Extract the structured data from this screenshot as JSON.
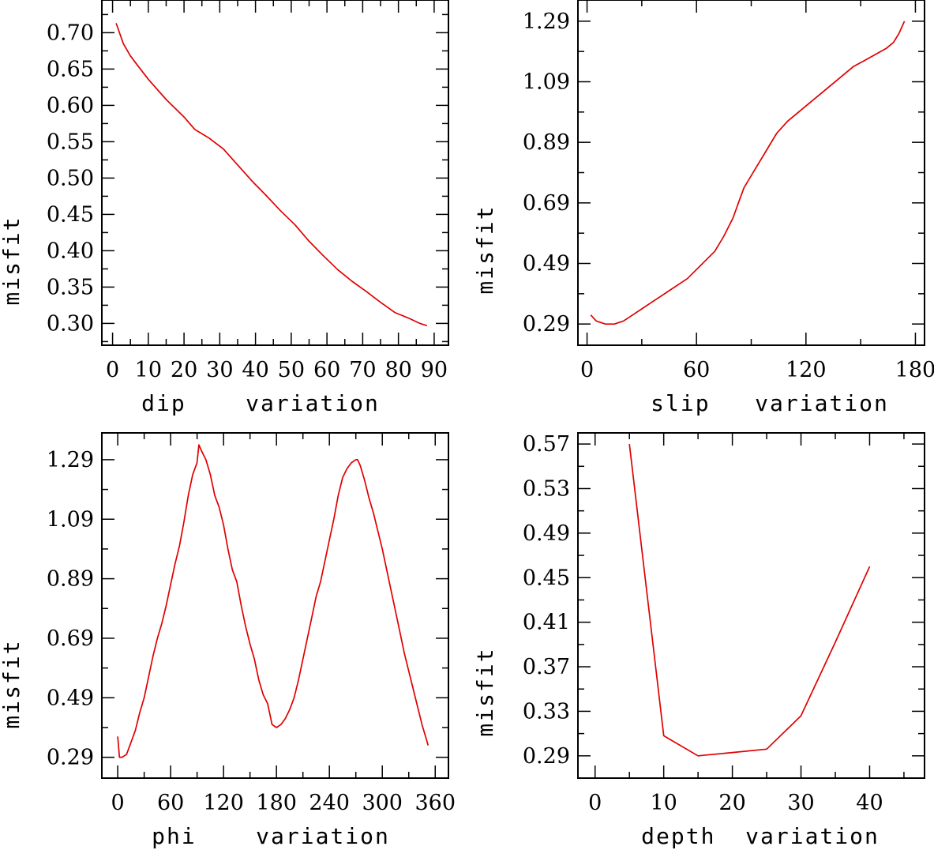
{
  "colors": {
    "curve": "#e00000",
    "frame": "#000000"
  },
  "chart_data": [
    {
      "type": "line",
      "title": "",
      "xlabel": "dip    variation",
      "ylabel": "misfit",
      "xlim": [
        -3,
        94
      ],
      "ylim": [
        0.27,
        0.745
      ],
      "xticks": [
        "0",
        "10",
        "20",
        "30",
        "40",
        "50",
        "60",
        "70",
        "80",
        "90"
      ],
      "xtick_values": [
        0,
        10,
        20,
        30,
        40,
        50,
        60,
        70,
        80,
        90
      ],
      "yticks": [
        "0.70",
        "0.65",
        "0.60",
        "0.55",
        "0.50",
        "0.45",
        "0.40",
        "0.35",
        "0.30"
      ],
      "ytick_values": [
        0.7,
        0.65,
        0.6,
        0.55,
        0.5,
        0.45,
        0.4,
        0.35,
        0.3
      ],
      "series": [
        {
          "name": "misfit",
          "x": [
            1,
            3,
            5,
            7,
            10,
            15,
            20,
            23,
            27,
            31,
            35,
            39,
            43,
            47,
            51,
            55,
            59,
            63,
            67,
            71,
            75,
            79,
            83,
            86,
            88
          ],
          "y": [
            0.713,
            0.685,
            0.668,
            0.655,
            0.636,
            0.608,
            0.584,
            0.567,
            0.555,
            0.54,
            0.518,
            0.496,
            0.476,
            0.455,
            0.436,
            0.413,
            0.393,
            0.374,
            0.358,
            0.344,
            0.329,
            0.315,
            0.307,
            0.3,
            0.297
          ]
        }
      ]
    },
    {
      "type": "line",
      "title": "",
      "xlabel": "slip   variation",
      "ylabel": "misfit",
      "xlim": [
        -5,
        185
      ],
      "ylim": [
        0.22,
        1.36
      ],
      "xticks": [
        "0",
        "60",
        "120",
        "180"
      ],
      "xtick_values": [
        0,
        60,
        120,
        180
      ],
      "yticks": [
        "1.29",
        "1.09",
        "0.89",
        "0.69",
        "0.49",
        "0.29"
      ],
      "ytick_values": [
        1.29,
        1.09,
        0.89,
        0.69,
        0.49,
        0.29
      ],
      "series": [
        {
          "name": "misfit",
          "x": [
            2,
            5,
            10,
            15,
            20,
            25,
            30,
            35,
            40,
            45,
            50,
            55,
            60,
            65,
            70,
            75,
            80,
            83,
            86,
            88,
            92,
            96,
            100,
            104,
            110,
            116,
            122,
            128,
            134,
            140,
            146,
            152,
            158,
            164,
            168,
            171,
            174
          ],
          "y": [
            0.32,
            0.3,
            0.29,
            0.29,
            0.3,
            0.32,
            0.34,
            0.36,
            0.38,
            0.4,
            0.42,
            0.44,
            0.47,
            0.5,
            0.53,
            0.58,
            0.64,
            0.69,
            0.74,
            0.76,
            0.8,
            0.84,
            0.88,
            0.92,
            0.96,
            0.99,
            1.02,
            1.05,
            1.08,
            1.11,
            1.14,
            1.16,
            1.18,
            1.2,
            1.22,
            1.25,
            1.29
          ]
        }
      ]
    },
    {
      "type": "line",
      "title": "",
      "xlabel": "phi    variation",
      "ylabel": "misfit",
      "xlim": [
        -18,
        375
      ],
      "ylim": [
        0.22,
        1.38
      ],
      "xticks": [
        "0",
        "60",
        "120",
        "180",
        "240",
        "300",
        "360"
      ],
      "xtick_values": [
        0,
        60,
        120,
        180,
        240,
        300,
        360
      ],
      "yticks": [
        "1.29",
        "1.09",
        "0.89",
        "0.69",
        "0.49",
        "0.29"
      ],
      "ytick_values": [
        1.29,
        1.09,
        0.89,
        0.69,
        0.49,
        0.29
      ],
      "series": [
        {
          "name": "misfit",
          "x": [
            0,
            2,
            5,
            10,
            15,
            20,
            25,
            30,
            35,
            40,
            45,
            50,
            55,
            60,
            65,
            70,
            75,
            80,
            85,
            90,
            92,
            95,
            100,
            105,
            110,
            115,
            120,
            125,
            130,
            135,
            140,
            145,
            150,
            155,
            160,
            165,
            170,
            175,
            180,
            185,
            190,
            195,
            200,
            205,
            210,
            215,
            220,
            225,
            230,
            235,
            240,
            245,
            250,
            255,
            260,
            265,
            270,
            272,
            275,
            280,
            285,
            290,
            295,
            300,
            305,
            310,
            315,
            320,
            325,
            330,
            335,
            340,
            345,
            350,
            352
          ],
          "y": [
            0.36,
            0.29,
            0.29,
            0.3,
            0.34,
            0.38,
            0.44,
            0.49,
            0.56,
            0.63,
            0.69,
            0.74,
            0.8,
            0.87,
            0.94,
            1.0,
            1.08,
            1.17,
            1.24,
            1.28,
            1.34,
            1.32,
            1.29,
            1.24,
            1.17,
            1.13,
            1.07,
            0.99,
            0.92,
            0.88,
            0.8,
            0.73,
            0.67,
            0.62,
            0.55,
            0.5,
            0.47,
            0.4,
            0.39,
            0.4,
            0.42,
            0.45,
            0.49,
            0.55,
            0.62,
            0.69,
            0.76,
            0.83,
            0.88,
            0.95,
            1.02,
            1.09,
            1.17,
            1.23,
            1.26,
            1.28,
            1.29,
            1.29,
            1.27,
            1.22,
            1.16,
            1.11,
            1.05,
            0.99,
            0.92,
            0.85,
            0.78,
            0.71,
            0.64,
            0.58,
            0.52,
            0.46,
            0.4,
            0.35,
            0.33
          ]
        }
      ]
    },
    {
      "type": "line",
      "title": "",
      "xlabel": "depth  variation",
      "ylabel": "misfit",
      "xlim": [
        -2.5,
        48
      ],
      "ylim": [
        0.27,
        0.58
      ],
      "xticks": [
        "0",
        "10",
        "20",
        "30",
        "40"
      ],
      "xtick_values": [
        0,
        10,
        20,
        30,
        40
      ],
      "yticks": [
        "0.57",
        "0.53",
        "0.49",
        "0.45",
        "0.41",
        "0.37",
        "0.33",
        "0.29"
      ],
      "ytick_values": [
        0.57,
        0.53,
        0.49,
        0.45,
        0.41,
        0.37,
        0.33,
        0.29
      ],
      "series": [
        {
          "name": "misfit",
          "x": [
            5,
            10,
            15,
            20,
            25,
            30,
            35,
            40
          ],
          "y": [
            0.57,
            0.308,
            0.29,
            0.293,
            0.296,
            0.326,
            0.392,
            0.46
          ]
        }
      ]
    }
  ]
}
